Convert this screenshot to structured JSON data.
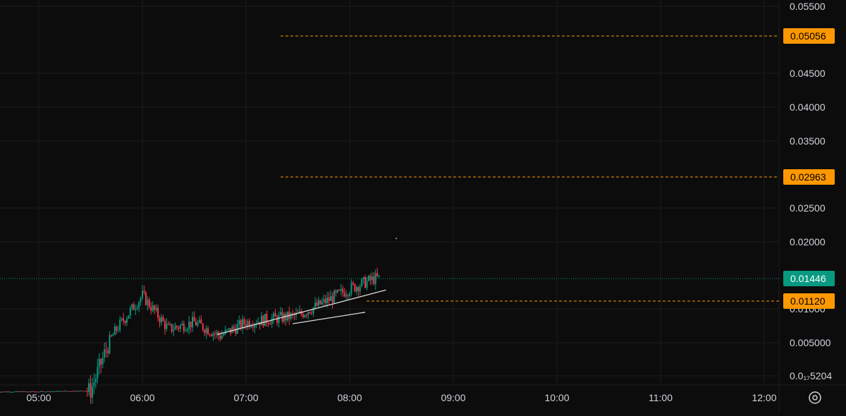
{
  "chart_data": {
    "type": "candlestick",
    "title": "",
    "xlabel": "",
    "ylabel": "",
    "x_ticks": [
      "05:00",
      "06:00",
      "07:00",
      "08:00",
      "09:00",
      "10:00",
      "11:00",
      "12:00"
    ],
    "y_ticks": [
      {
        "value": 0.0055,
        "label": "0.05500"
      },
      {
        "value": 0.0045,
        "label": "0.04500"
      },
      {
        "value": 0.004,
        "label": "0.04000"
      },
      {
        "value": 0.0035,
        "label": "0.03500"
      },
      {
        "value": 0.0025,
        "label": "0.02500"
      },
      {
        "value": 0.002,
        "label": "0.02000"
      },
      {
        "value": 0.001,
        "label": "0.01000"
      },
      {
        "value": 0.0005,
        "label": "0.005000"
      },
      {
        "value": 0.000175204,
        "label": "0.0₁₇5204"
      }
    ],
    "ylim": [
      5e-05,
      0.0056
    ],
    "price_lines": [
      {
        "value": 0.005056,
        "label": "0.05056",
        "color": "#ff9800",
        "style": "dashed"
      },
      {
        "value": 0.002963,
        "label": "0.02963",
        "color": "#ff9800",
        "style": "dashed"
      },
      {
        "value": 0.00112,
        "label": "0.01120",
        "color": "#ff9800",
        "style": "dashed"
      }
    ],
    "last_price": {
      "value": 0.001446,
      "label": "0.01446",
      "color": "#089981"
    },
    "candles_hourly_close": [
      {
        "time": "05:00",
        "value": 2e-05
      },
      {
        "time": "05:30",
        "value": 3e-05
      },
      {
        "time": "05:45",
        "value": 0.0007
      },
      {
        "time": "06:00",
        "value": 0.0012
      },
      {
        "time": "06:15",
        "value": 0.0007
      },
      {
        "time": "06:30",
        "value": 0.0008
      },
      {
        "time": "06:45",
        "value": 0.0006
      },
      {
        "time": "07:00",
        "value": 0.0008
      },
      {
        "time": "07:30",
        "value": 0.0009
      },
      {
        "time": "08:00",
        "value": 0.0013
      },
      {
        "time": "08:15",
        "value": 0.00145
      }
    ],
    "colors": {
      "up": "#089981",
      "down": "#f23645",
      "grid": "#1b1b1b",
      "trendline": "#d9d9d9"
    },
    "grid": true
  },
  "icons": {
    "settings": "settings-icon"
  }
}
